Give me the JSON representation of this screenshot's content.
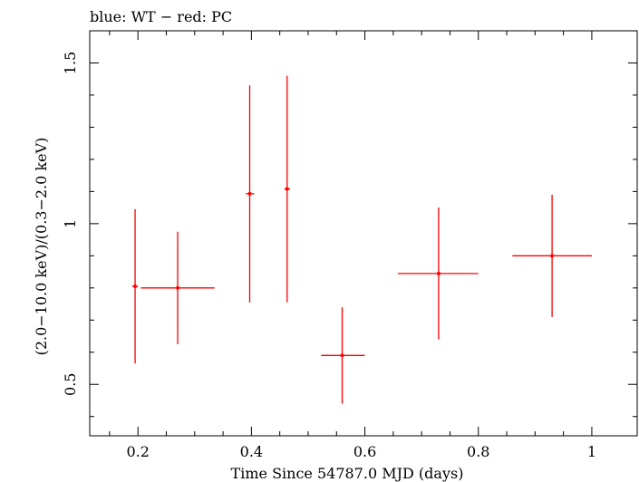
{
  "chart_data": {
    "type": "scatter",
    "title": "blue: WT − red: PC",
    "xlabel": "Time Since 54787.0 MJD (days)",
    "ylabel": "(2.0−10.0 keV)/(0.3−2.0 keV)",
    "xlim": [
      0.115,
      1.08
    ],
    "ylim": [
      0.34,
      1.6
    ],
    "xticks": [
      0.2,
      0.4,
      0.6,
      0.8,
      1.0
    ],
    "xtick_labels": [
      "0.2",
      "0.4",
      "0.6",
      "0.8",
      "1"
    ],
    "yticks": [
      0.5,
      1.0,
      1.5
    ],
    "ytick_labels": [
      "0.5",
      "1",
      "1.5"
    ],
    "grid": false,
    "series": [
      {
        "name": "PC",
        "color": "#ff0000",
        "points": [
          {
            "x": 0.195,
            "xlo": 0.19,
            "xhi": 0.2,
            "y": 0.805,
            "ylo": 0.565,
            "yhi": 1.045
          },
          {
            "x": 0.27,
            "xlo": 0.205,
            "xhi": 0.335,
            "y": 0.8,
            "ylo": 0.625,
            "yhi": 0.975
          },
          {
            "x": 0.397,
            "xlo": 0.39,
            "xhi": 0.405,
            "y": 1.093,
            "ylo": 0.755,
            "yhi": 1.43
          },
          {
            "x": 0.463,
            "xlo": 0.458,
            "xhi": 0.468,
            "y": 1.108,
            "ylo": 0.755,
            "yhi": 1.46
          },
          {
            "x": 0.56,
            "xlo": 0.523,
            "xhi": 0.6,
            "y": 0.59,
            "ylo": 0.44,
            "yhi": 0.74
          },
          {
            "x": 0.73,
            "xlo": 0.658,
            "xhi": 0.8,
            "y": 0.845,
            "ylo": 0.64,
            "yhi": 1.05
          },
          {
            "x": 0.93,
            "xlo": 0.86,
            "xhi": 1.0,
            "y": 0.9,
            "ylo": 0.71,
            "yhi": 1.09
          }
        ]
      }
    ]
  }
}
